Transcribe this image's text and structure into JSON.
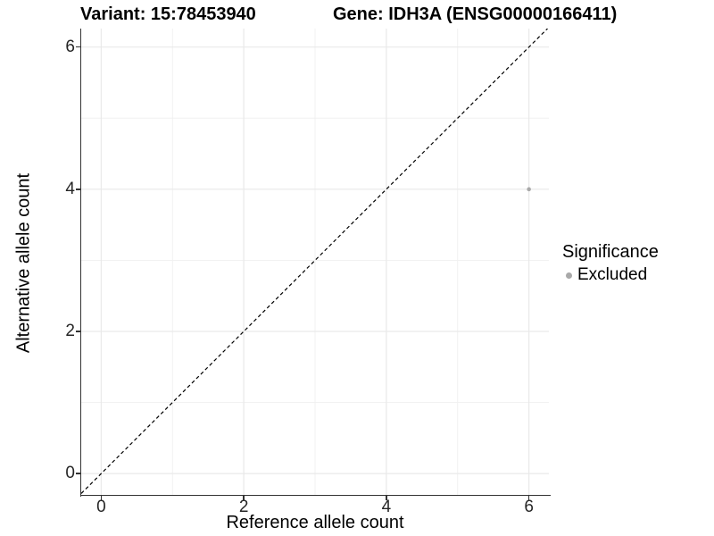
{
  "chart_data": {
    "type": "scatter",
    "title_left": "Variant: 15:78453940",
    "title_right": "Gene: IDH3A (ENSG00000166411)",
    "xlabel": "Reference allele count",
    "ylabel": "Alternative allele count",
    "xlim": [
      -0.28,
      6.28
    ],
    "ylim": [
      -0.3,
      6.26
    ],
    "x_ticks": [
      0,
      2,
      4,
      6
    ],
    "y_ticks": [
      0,
      2,
      4,
      6
    ],
    "x_minor_ticks": [
      1,
      3,
      5
    ],
    "y_minor_ticks": [
      1,
      3,
      5
    ],
    "grid": "major+minor",
    "legend_position": "right",
    "reference_line": {
      "slope": 1,
      "intercept": 0,
      "style": "dashed",
      "color": "#000000"
    },
    "series": [
      {
        "name": "Excluded",
        "color": "#a9a9a9",
        "point_radius": 2.3,
        "points": [
          {
            "x": 6,
            "y": 4
          }
        ]
      }
    ],
    "legend": {
      "title": "Significance",
      "items": [
        {
          "label": "Excluded",
          "color": "#a9a9a9"
        }
      ]
    }
  },
  "style_colors": {
    "grid_major": "#e9e9e9",
    "grid_minor": "#f0f0f0",
    "axis_line": "#333333",
    "background": "#ffffff"
  }
}
